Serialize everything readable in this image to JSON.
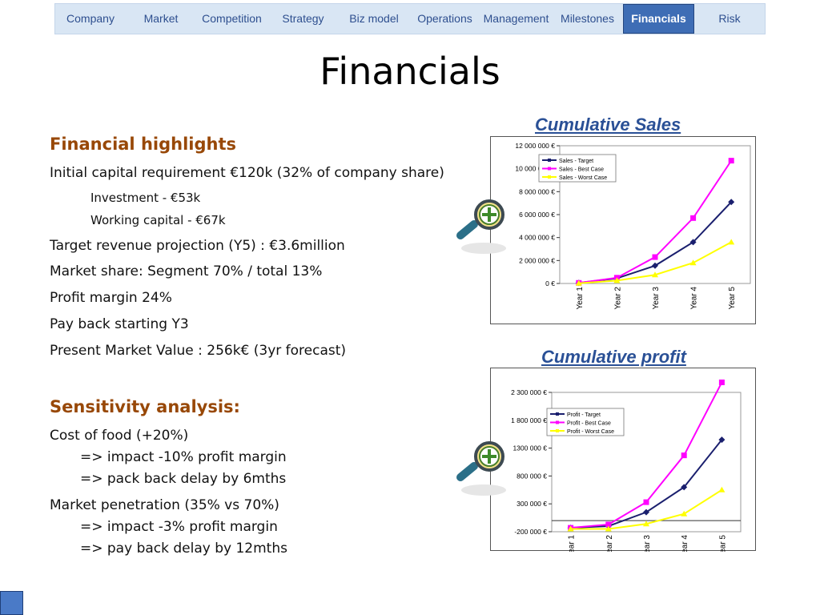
{
  "nav": {
    "items": [
      {
        "label": "Company",
        "active": false
      },
      {
        "label": "Market",
        "active": false
      },
      {
        "label": "Competition",
        "active": false
      },
      {
        "label": "Strategy",
        "active": false
      },
      {
        "label": "Biz model",
        "active": false
      },
      {
        "label": "Operations",
        "active": false
      },
      {
        "label": "Management",
        "active": false
      },
      {
        "label": "Milestones",
        "active": false
      },
      {
        "label": "Financials",
        "active": true
      },
      {
        "label": "Risk",
        "active": false
      }
    ]
  },
  "page": {
    "title": "Financials"
  },
  "highlights": {
    "heading": "Financial highlights",
    "capital": "Initial capital requirement €120k (32% of company share)",
    "investment": "Investment - €53k",
    "working_capital": "Working capital - €67k",
    "revenue": "Target revenue projection (Y5) : €3.6million",
    "market_share": "Market share: Segment 70% / total 13%",
    "profit_margin": "Profit margin 24%",
    "payback": "Pay back starting Y3",
    "pmv": "Present Market Value : 256k€ (3yr forecast)"
  },
  "sensitivity": {
    "heading": "Sensitivity analysis:",
    "food": "Cost of food (+20%)",
    "food_impact": "=> impact -10% profit margin",
    "food_delay": "=> pack back delay by 6mths",
    "penetration": "Market penetration (35% vs 70%)",
    "pen_impact": "=> impact -3% profit margin",
    "pen_delay": "=> pay back delay by 12mths"
  },
  "chart_titles": {
    "sales": "Cumulative Sales",
    "profit": "Cumulative profit"
  },
  "icons": {
    "zoom": "magnifier-plus-icon"
  },
  "colors": {
    "target": "#1a1f6e",
    "best": "#ff00ff",
    "worst": "#ffff00",
    "accent": "#3e6db5"
  },
  "chart_data": [
    {
      "type": "line",
      "title": "Cumulative Sales",
      "categories": [
        "Year 1",
        "Year 2",
        "Year 3",
        "Year 4",
        "Year 5"
      ],
      "yticks": [
        "0 €",
        "2 000 000 €",
        "4 000 000 €",
        "6 000 000 €",
        "8 000 000 €",
        "10 000 000 €",
        "12 000 000 €"
      ],
      "ylim": [
        0,
        12000000
      ],
      "series": [
        {
          "name": "Sales - Target",
          "values": [
            50000,
            450000,
            1550000,
            3600000,
            7100000
          ]
        },
        {
          "name": "Sales - Best Case",
          "values": [
            50000,
            500000,
            2300000,
            5700000,
            10700000
          ]
        },
        {
          "name": "Sales - Worst Case",
          "values": [
            20000,
            250000,
            750000,
            1800000,
            3600000
          ]
        }
      ]
    },
    {
      "type": "line",
      "title": "Cumulative profit",
      "categories": [
        "Year 1",
        "Year 2",
        "Year 3",
        "Year 4",
        "Year 5"
      ],
      "yticks": [
        "-200 000 €",
        "300 000 €",
        "800 000 €",
        "1300 000 €",
        "1 800 000 €",
        "2 300 000 €"
      ],
      "ylim": [
        -200000,
        2300000
      ],
      "series": [
        {
          "name": "Profit - Target",
          "values": [
            -130000,
            -100000,
            150000,
            600000,
            1450000
          ]
        },
        {
          "name": "Profit - Best Case",
          "values": [
            -130000,
            -70000,
            330000,
            1170000,
            2480000
          ]
        },
        {
          "name": "Profit - Worst Case",
          "values": [
            -150000,
            -150000,
            -60000,
            120000,
            550000
          ]
        }
      ]
    }
  ]
}
